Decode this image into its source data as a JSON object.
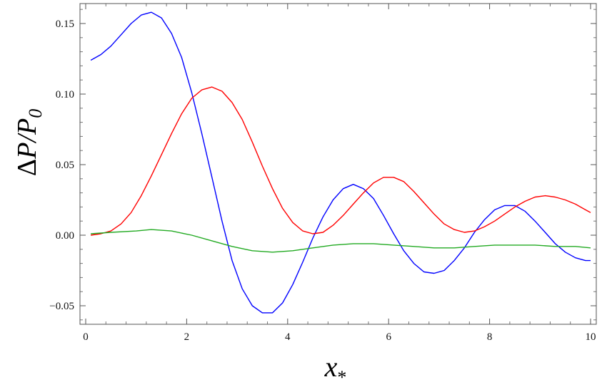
{
  "chart_data": {
    "type": "line",
    "title": "",
    "xlabel": "x",
    "xlabel_subscript": "*",
    "ylabel_delta": "Δ",
    "ylabel_num": "P",
    "ylabel_slash": "/",
    "ylabel_den": "P",
    "ylabel_den_sub": "0",
    "xlim": [
      0,
      10
    ],
    "ylim": [
      -0.06,
      0.16
    ],
    "x_ticks": [
      0,
      2,
      4,
      6,
      8,
      10
    ],
    "x_tick_labels": [
      "0",
      "2",
      "4",
      "6",
      "8",
      "10"
    ],
    "y_ticks": [
      -0.05,
      0.0,
      0.05,
      0.1,
      0.15
    ],
    "y_tick_labels": [
      "−0.05",
      "0.00",
      "0.05",
      "0.10",
      "0.15"
    ],
    "grid": false,
    "series": [
      {
        "color": "#0000ff",
        "x": [
          0.1,
          0.3,
          0.5,
          0.7,
          0.9,
          1.1,
          1.3,
          1.5,
          1.7,
          1.9,
          2.1,
          2.3,
          2.5,
          2.7,
          2.9,
          3.1,
          3.3,
          3.5,
          3.7,
          3.9,
          4.1,
          4.3,
          4.5,
          4.7,
          4.9,
          5.1,
          5.3,
          5.5,
          5.7,
          5.9,
          6.1,
          6.3,
          6.5,
          6.7,
          6.9,
          7.1,
          7.3,
          7.5,
          7.7,
          7.9,
          8.1,
          8.3,
          8.5,
          8.7,
          8.9,
          9.1,
          9.3,
          9.5,
          9.7,
          9.9,
          10.0
        ],
        "y": [
          0.124,
          0.128,
          0.134,
          0.142,
          0.15,
          0.156,
          0.158,
          0.154,
          0.143,
          0.126,
          0.101,
          0.072,
          0.041,
          0.01,
          -0.018,
          -0.038,
          -0.05,
          -0.055,
          -0.055,
          -0.048,
          -0.035,
          -0.019,
          -0.002,
          0.013,
          0.025,
          0.033,
          0.036,
          0.033,
          0.026,
          0.014,
          0.001,
          -0.011,
          -0.02,
          -0.026,
          -0.027,
          -0.025,
          -0.018,
          -0.009,
          0.002,
          0.011,
          0.018,
          0.021,
          0.021,
          0.017,
          0.01,
          0.002,
          -0.006,
          -0.012,
          -0.016,
          -0.018,
          -0.018
        ]
      },
      {
        "color": "#ff0000",
        "x": [
          0.1,
          0.3,
          0.5,
          0.7,
          0.9,
          1.1,
          1.3,
          1.5,
          1.7,
          1.9,
          2.1,
          2.3,
          2.5,
          2.7,
          2.9,
          3.1,
          3.3,
          3.5,
          3.7,
          3.9,
          4.1,
          4.3,
          4.5,
          4.7,
          4.9,
          5.1,
          5.3,
          5.5,
          5.7,
          5.9,
          6.1,
          6.3,
          6.5,
          6.7,
          6.9,
          7.1,
          7.3,
          7.5,
          7.7,
          7.9,
          8.1,
          8.3,
          8.5,
          8.7,
          8.9,
          9.1,
          9.3,
          9.5,
          9.7,
          9.9,
          10.0
        ],
        "y": [
          0.0,
          0.001,
          0.003,
          0.008,
          0.016,
          0.028,
          0.042,
          0.057,
          0.072,
          0.086,
          0.097,
          0.103,
          0.105,
          0.102,
          0.094,
          0.082,
          0.066,
          0.049,
          0.033,
          0.019,
          0.009,
          0.003,
          0.001,
          0.002,
          0.007,
          0.014,
          0.022,
          0.03,
          0.037,
          0.041,
          0.041,
          0.038,
          0.031,
          0.023,
          0.015,
          0.008,
          0.004,
          0.002,
          0.003,
          0.006,
          0.01,
          0.015,
          0.02,
          0.024,
          0.027,
          0.028,
          0.027,
          0.025,
          0.022,
          0.018,
          0.016
        ]
      },
      {
        "color": "#22aa22",
        "x": [
          0.1,
          0.5,
          1.0,
          1.3,
          1.7,
          2.1,
          2.5,
          2.9,
          3.3,
          3.7,
          4.1,
          4.5,
          4.9,
          5.3,
          5.7,
          6.1,
          6.5,
          6.9,
          7.3,
          7.7,
          8.1,
          8.5,
          8.9,
          9.3,
          9.7,
          10.0
        ],
        "y": [
          0.001,
          0.002,
          0.003,
          0.004,
          0.003,
          0.0,
          -0.004,
          -0.008,
          -0.011,
          -0.012,
          -0.011,
          -0.009,
          -0.007,
          -0.006,
          -0.006,
          -0.007,
          -0.008,
          -0.009,
          -0.009,
          -0.008,
          -0.007,
          -0.007,
          -0.007,
          -0.008,
          -0.008,
          -0.009
        ]
      }
    ]
  }
}
